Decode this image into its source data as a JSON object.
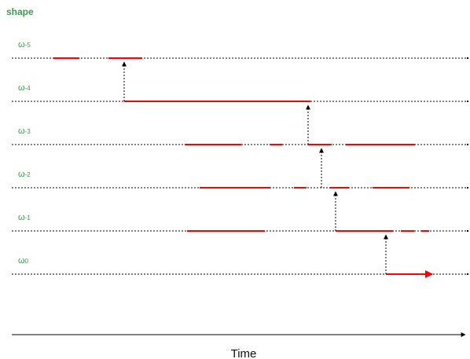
{
  "title": "shape",
  "axis": {
    "label": "Time"
  },
  "colors": {
    "accent": "#ff0000",
    "label": "#3e9a4f",
    "line": "#000000"
  },
  "levels": [
    {
      "base": "ω",
      "sub": "-5",
      "segments": [
        [
          68,
          101
        ],
        [
          138,
          181
        ]
      ]
    },
    {
      "base": "ω",
      "sub": "-4",
      "segments": [
        [
          158,
          395
        ]
      ]
    },
    {
      "base": "ω",
      "sub": "-3",
      "segments": [
        [
          235,
          307
        ],
        [
          343,
          359
        ],
        [
          392,
          422
        ],
        [
          440,
          528
        ]
      ]
    },
    {
      "base": "ω",
      "sub": "-2",
      "segments": [
        [
          254,
          344
        ],
        [
          374,
          390
        ],
        [
          419,
          444
        ],
        [
          474,
          521
        ]
      ]
    },
    {
      "base": "ω",
      "sub": "-1",
      "segments": [
        [
          238,
          337
        ],
        [
          427,
          500
        ],
        [
          510,
          527
        ],
        [
          536,
          546
        ]
      ]
    },
    {
      "base": "ω",
      "sub": "0",
      "segments": [],
      "arrow_segment": [
        491,
        550
      ]
    }
  ],
  "transitions": [
    {
      "x": 158,
      "from": 1,
      "to": 0
    },
    {
      "x": 392,
      "from": 2,
      "to": 1
    },
    {
      "x": 409,
      "from": 3,
      "to": 2
    },
    {
      "x": 419,
      "from": 3,
      "to": 2,
      "skip": true
    },
    {
      "x": 427,
      "from": 4,
      "to": 3
    },
    {
      "x": 491,
      "from": 5,
      "to": 4
    }
  ]
}
